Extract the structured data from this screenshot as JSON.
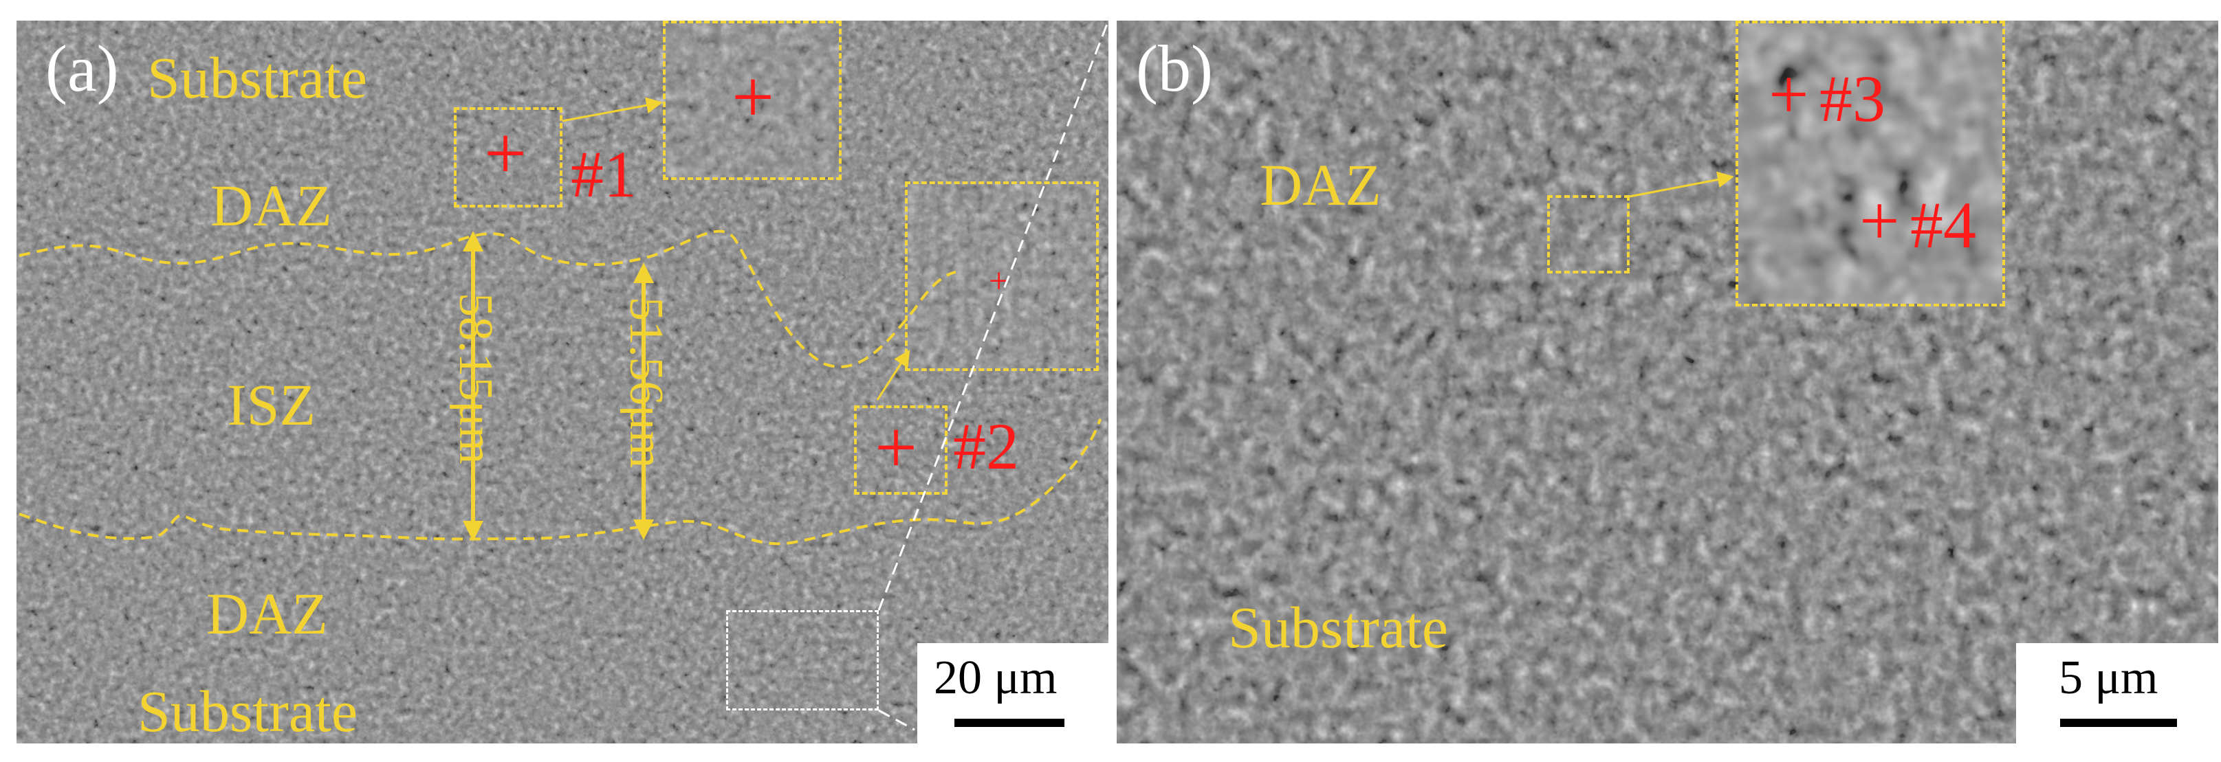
{
  "panel_a": {
    "label": "(a)",
    "regions": {
      "substrate_top": "Substrate",
      "daz_top": "DAZ",
      "isz": "ISZ",
      "daz_bottom": "DAZ",
      "substrate_bottom": "Substrate"
    },
    "points": {
      "p1": "#1",
      "p2": "#2"
    },
    "measurements": {
      "m1": "58.15μm",
      "m2": "51.56μm"
    },
    "scale": "20 μm"
  },
  "panel_b": {
    "label": "(b)",
    "regions": {
      "daz": "DAZ",
      "substrate": "Substrate"
    },
    "points": {
      "p3": "#3",
      "p4": "#4"
    },
    "scale": "5 μm"
  },
  "colors": {
    "annotation_yellow": "#f2d332",
    "marker_red": "#ff1a1a",
    "sem_gray": "#7a7a7a"
  },
  "icons": {
    "marker": "plus-icon",
    "arrow": "arrow-icon"
  }
}
